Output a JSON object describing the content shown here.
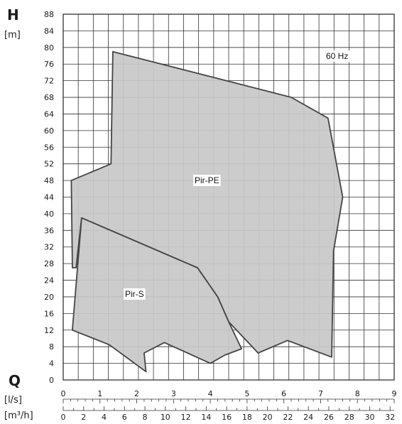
{
  "chart_data": {
    "type": "area",
    "y_axis": {
      "symbol": "H",
      "unit": "[m]",
      "range": [
        0,
        88
      ],
      "ticks": [
        0,
        4,
        8,
        12,
        16,
        20,
        24,
        28,
        32,
        36,
        40,
        44,
        48,
        52,
        56,
        60,
        64,
        68,
        72,
        76,
        80,
        84,
        88
      ]
    },
    "x_axis_ls": {
      "unit": "[l/s]",
      "range": [
        0,
        9
      ],
      "ticks": [
        0,
        1,
        2,
        3,
        4,
        5,
        6,
        7,
        8,
        9
      ]
    },
    "x_axis_m3h": {
      "unit": "[m³/h]",
      "range": [
        0,
        32.4
      ],
      "ticks": [
        0,
        2,
        4,
        6,
        8,
        10,
        12,
        14,
        16,
        18,
        20,
        22,
        24,
        26,
        28,
        30,
        32
      ]
    },
    "q_symbol": "Q",
    "grid": true,
    "annotation": "60 Hz",
    "series": [
      {
        "name": "Pir-PE",
        "points_ls_m": [
          [
            0.22,
            48
          ],
          [
            1.3,
            52
          ],
          [
            1.35,
            79
          ],
          [
            6.2,
            68
          ],
          [
            7.2,
            63
          ],
          [
            7.6,
            44
          ],
          [
            7.35,
            31
          ],
          [
            7.3,
            5.5
          ],
          [
            6.1,
            9.5
          ],
          [
            5.3,
            6.5
          ],
          [
            4.5,
            14
          ],
          [
            4.2,
            20
          ],
          [
            3.65,
            27
          ],
          [
            0.5,
            39
          ],
          [
            0.35,
            27
          ],
          [
            0.25,
            27
          ]
        ]
      },
      {
        "name": "Pir-S",
        "points_ls_m": [
          [
            0.5,
            39
          ],
          [
            3.65,
            27
          ],
          [
            4.2,
            20
          ],
          [
            4.5,
            14
          ],
          [
            4.85,
            7.5
          ],
          [
            4.4,
            6
          ],
          [
            4.0,
            4
          ],
          [
            2.75,
            9
          ],
          [
            2.2,
            6.5
          ],
          [
            2.25,
            2
          ],
          [
            1.25,
            8.5
          ],
          [
            0.25,
            12
          ]
        ]
      }
    ],
    "fill_color": "#c8c8c8",
    "outline_color": "#444444"
  }
}
